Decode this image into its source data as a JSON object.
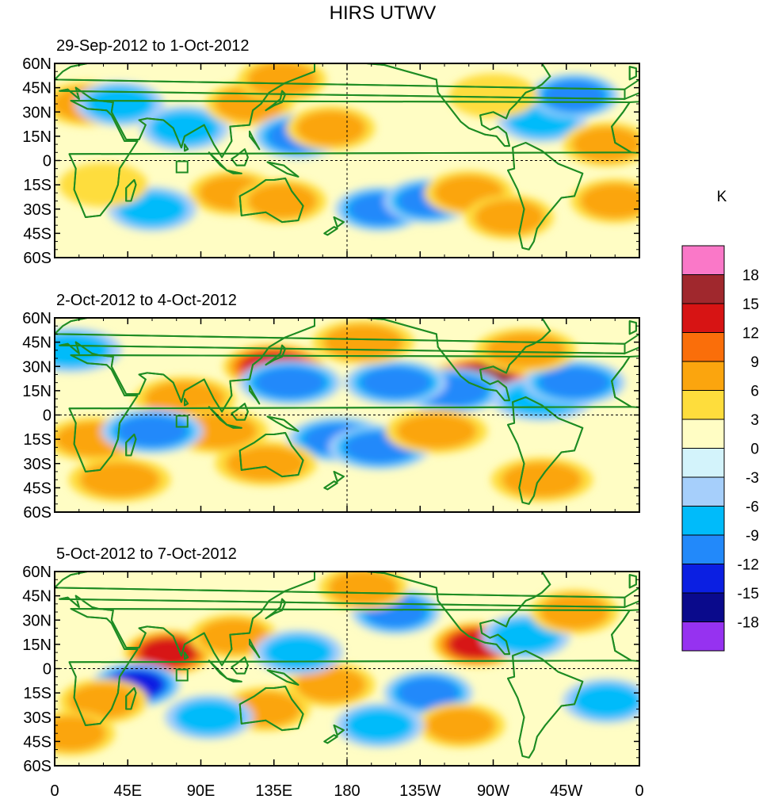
{
  "chart_data": {
    "type": "heatmap",
    "title": "HIRS UTWV",
    "panels": [
      {
        "subtitle": "29-Sep-2012 to 1-Oct-2012",
        "blobs": [
          {
            "lon": 20,
            "lat": 35,
            "v": 6
          },
          {
            "lon": 40,
            "lat": 35,
            "v": -6
          },
          {
            "lon": 80,
            "lat": 20,
            "v": -6
          },
          {
            "lon": 120,
            "lat": 35,
            "v": 6
          },
          {
            "lon": 140,
            "lat": 50,
            "v": 6
          },
          {
            "lon": 150,
            "lat": 15,
            "v": -9
          },
          {
            "lon": 170,
            "lat": 20,
            "v": 6
          },
          {
            "lon": 110,
            "lat": -20,
            "v": 6
          },
          {
            "lon": 140,
            "lat": -25,
            "v": 6
          },
          {
            "lon": 200,
            "lat": -30,
            "v": -9
          },
          {
            "lon": 230,
            "lat": -25,
            "v": -9
          },
          {
            "lon": 255,
            "lat": -20,
            "v": 6
          },
          {
            "lon": 280,
            "lat": -35,
            "v": 6
          },
          {
            "lon": 300,
            "lat": 25,
            "v": -6
          },
          {
            "lon": 320,
            "lat": 40,
            "v": -9
          },
          {
            "lon": 340,
            "lat": 10,
            "v": 6
          },
          {
            "lon": 60,
            "lat": -30,
            "v": -6
          },
          {
            "lon": 30,
            "lat": -15,
            "v": 3
          },
          {
            "lon": 270,
            "lat": 40,
            "v": 3
          },
          {
            "lon": 345,
            "lat": -25,
            "v": 6
          }
        ]
      },
      {
        "subtitle": "2-Oct-2012 to 4-Oct-2012",
        "blobs": [
          {
            "lon": 25,
            "lat": -15,
            "v": 6
          },
          {
            "lon": 80,
            "lat": 10,
            "v": 6
          },
          {
            "lon": 135,
            "lat": 30,
            "v": 12
          },
          {
            "lon": 145,
            "lat": 20,
            "v": -9
          },
          {
            "lon": 175,
            "lat": -15,
            "v": -9
          },
          {
            "lon": 200,
            "lat": -20,
            "v": -9
          },
          {
            "lon": 130,
            "lat": -30,
            "v": 6
          },
          {
            "lon": 100,
            "lat": -10,
            "v": 6
          },
          {
            "lon": 262,
            "lat": 22,
            "v": 15
          },
          {
            "lon": 245,
            "lat": 15,
            "v": -9
          },
          {
            "lon": 210,
            "lat": 20,
            "v": -9
          },
          {
            "lon": 300,
            "lat": 10,
            "v": -6
          },
          {
            "lon": 320,
            "lat": 20,
            "v": -9
          },
          {
            "lon": 300,
            "lat": -40,
            "v": 6
          },
          {
            "lon": 60,
            "lat": -10,
            "v": -9
          },
          {
            "lon": 235,
            "lat": -10,
            "v": 6
          },
          {
            "lon": 290,
            "lat": 40,
            "v": 6
          },
          {
            "lon": 10,
            "lat": 40,
            "v": -6
          },
          {
            "lon": 190,
            "lat": 45,
            "v": 6
          },
          {
            "lon": 40,
            "lat": -40,
            "v": 6
          }
        ]
      },
      {
        "subtitle": "5-Oct-2012 to 7-Oct-2012",
        "blobs": [
          {
            "lon": 70,
            "lat": 10,
            "v": 12
          },
          {
            "lon": 50,
            "lat": -10,
            "v": -12
          },
          {
            "lon": 30,
            "lat": -20,
            "v": 6
          },
          {
            "lon": 130,
            "lat": -25,
            "v": 6
          },
          {
            "lon": 95,
            "lat": -30,
            "v": -6
          },
          {
            "lon": 210,
            "lat": 35,
            "v": -9
          },
          {
            "lon": 190,
            "lat": 50,
            "v": 6
          },
          {
            "lon": 260,
            "lat": 15,
            "v": 12
          },
          {
            "lon": 290,
            "lat": 20,
            "v": -6
          },
          {
            "lon": 320,
            "lat": 35,
            "v": 6
          },
          {
            "lon": 170,
            "lat": -10,
            "v": 6
          },
          {
            "lon": 230,
            "lat": -15,
            "v": -9
          },
          {
            "lon": 250,
            "lat": -35,
            "v": 6
          },
          {
            "lon": 110,
            "lat": 20,
            "v": 6
          },
          {
            "lon": 10,
            "lat": -40,
            "v": 6
          },
          {
            "lon": 200,
            "lat": -35,
            "v": -6
          },
          {
            "lon": 340,
            "lat": -20,
            "v": -6
          },
          {
            "lon": 150,
            "lat": 10,
            "v": -6
          }
        ]
      }
    ],
    "lon_range": [
      0,
      360
    ],
    "lat_range": [
      -60,
      60
    ],
    "x_tick_labels": [
      "0",
      "45E",
      "90E",
      "135E",
      "180",
      "135W",
      "90W",
      "45W",
      "0"
    ],
    "y_tick_labels": [
      "60N",
      "45N",
      "30N",
      "15N",
      "0",
      "15S",
      "30S",
      "45S",
      "60S"
    ],
    "colorbar": {
      "unit": "K",
      "labels": [
        "18",
        "15",
        "12",
        "9",
        "6",
        "3",
        "0",
        "-3",
        "-6",
        "-9",
        "-12",
        "-15",
        "-18"
      ],
      "colors": [
        "#fa78c8",
        "#a0282d",
        "#d71414",
        "#fa6e0a",
        "#fba50e",
        "#fedd3c",
        "#fffdc4",
        "#d3f3fb",
        "#a6cffb",
        "#00bbfa",
        "#2289fa",
        "#0b1fe2",
        "#0a0a8c",
        "#9632f0"
      ]
    },
    "colors": {
      "coast": "#1e8c23",
      "grid": "#000000"
    }
  }
}
